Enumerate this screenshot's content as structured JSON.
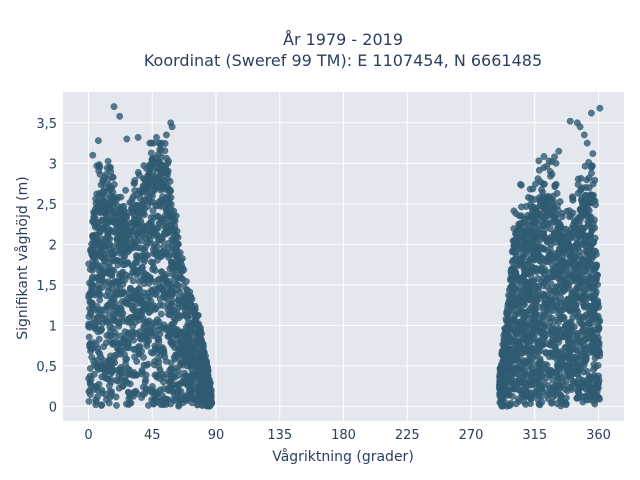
{
  "chart_data": {
    "type": "scatter",
    "title_lines": [
      "År 1979 - 2019",
      "Koordinat (Sweref 99 TM): E 1107454, N 6661485"
    ],
    "xlabel": "Vågriktning (grader)",
    "ylabel": "Signifikant våghöjd (m)",
    "xlim": [
      -18,
      378
    ],
    "ylim": [
      -0.18,
      3.88
    ],
    "x_ticks": [
      0,
      45,
      90,
      135,
      180,
      225,
      270,
      315,
      360
    ],
    "x_tick_labels": [
      "0",
      "45",
      "90",
      "135",
      "180",
      "225",
      "270",
      "315",
      "360"
    ],
    "y_ticks": [
      0,
      0.5,
      1,
      1.5,
      2,
      2.5,
      3,
      3.5
    ],
    "y_tick_labels": [
      "0",
      "0,5",
      "1",
      "1,5",
      "2",
      "2,5",
      "3",
      "3,5"
    ],
    "grid": true,
    "legend": "none",
    "marker_color": "#2f5b72",
    "plot_background": "#e5e7ef",
    "series": [
      {
        "clusters": [
          {
            "x_range": [
              0,
              87
            ],
            "y_range": [
              0,
              3.7
            ],
            "note_count": "dense"
          },
          {
            "x_range": [
              290,
              360
            ],
            "y_range": [
              0,
              3.7
            ],
            "note_count": "dense"
          }
        ],
        "outliers": [
          [
            18,
            3.7
          ],
          [
            22,
            3.58
          ],
          [
            7,
            3.28
          ],
          [
            27,
            3.3
          ],
          [
            35,
            3.32
          ],
          [
            48,
            3.32
          ],
          [
            55,
            3.35
          ],
          [
            58,
            3.5
          ],
          [
            59,
            3.45
          ],
          [
            3,
            3.1
          ],
          [
            345,
            3.5
          ],
          [
            347,
            3.45
          ],
          [
            340,
            3.52
          ],
          [
            350,
            3.35
          ],
          [
            355,
            3.62
          ],
          [
            361,
            3.68
          ],
          [
            356,
            3.12
          ],
          [
            352,
            3.25
          ],
          [
            332,
            3.15
          ],
          [
            329,
            3.08
          ],
          [
            327,
            3.02
          ],
          [
            330,
            3.0
          ]
        ]
      }
    ]
  }
}
